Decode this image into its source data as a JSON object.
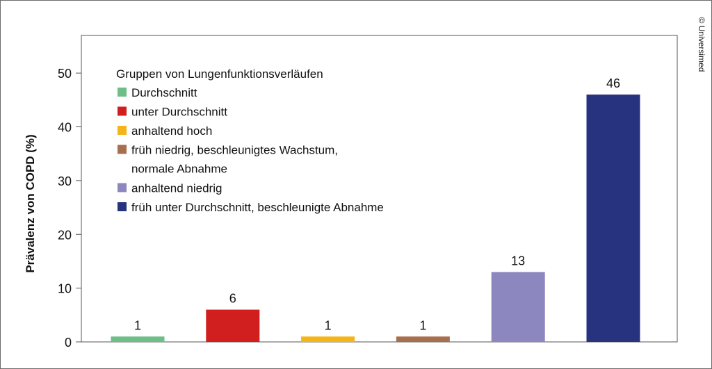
{
  "copyright": "© Universimed",
  "chart_data": {
    "type": "bar",
    "ylabel": "Prävalenz von COPD (%)",
    "ylim": [
      0,
      57
    ],
    "yticks": [
      0,
      10,
      20,
      30,
      40,
      50
    ],
    "grid": false,
    "legend_title": "Gruppen von Lungenfunktionsverläufen",
    "legend_position": "top-left",
    "categories": [
      [
        "Durchschnitt"
      ],
      [
        "unter Durchschnitt"
      ],
      [
        "anhaltend hoch"
      ],
      [
        "früh niedrig, beschleunigtes Wachstum,",
        "normale Abnahme"
      ],
      [
        "anhaltend niedrig"
      ],
      [
        "früh unter Durchschnitt, beschleunigte Abnahme"
      ]
    ],
    "values": [
      1,
      6,
      1,
      1,
      13,
      46
    ],
    "data_labels": [
      "1",
      "6",
      "1",
      "1",
      "13",
      "46"
    ],
    "colors": [
      "#6dbf87",
      "#d11f1f",
      "#f4b41a",
      "#a86f4e",
      "#8c87bf",
      "#27337f"
    ]
  }
}
